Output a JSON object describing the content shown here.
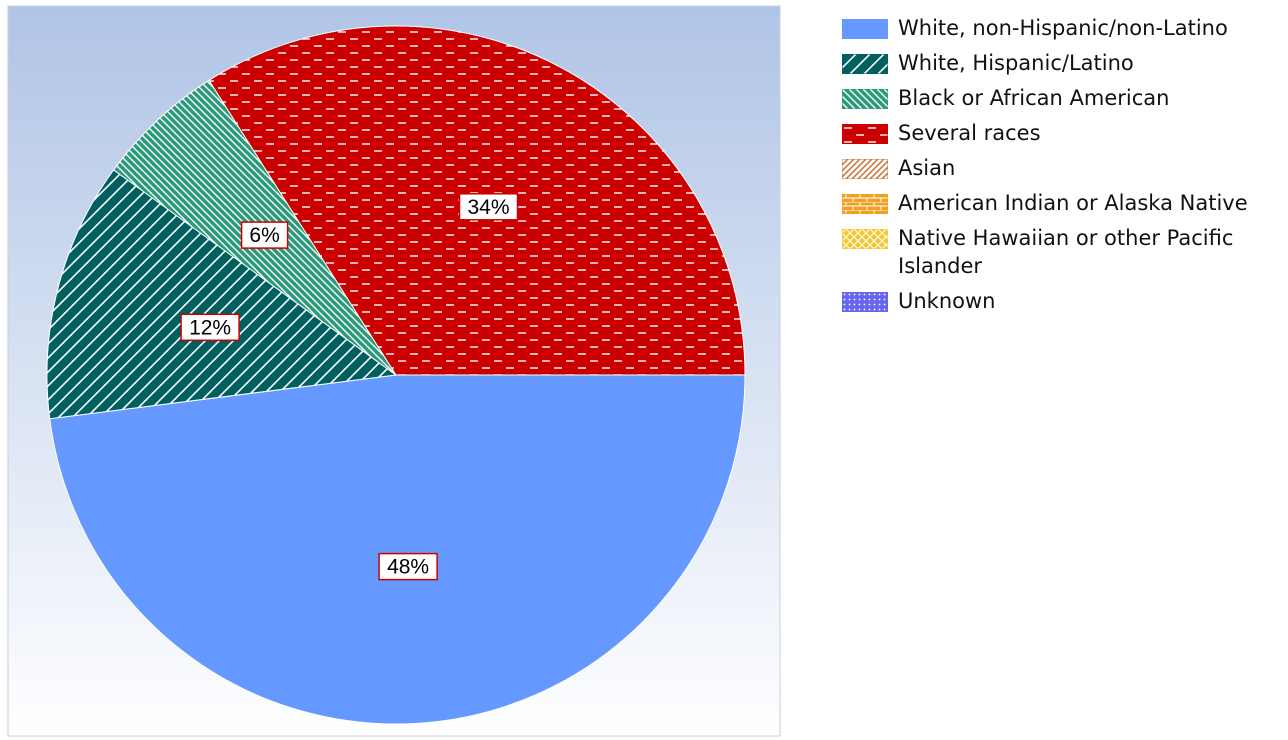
{
  "chart_data": {
    "type": "pie",
    "slices": [
      {
        "name": "White, non-Hispanic/non-Latino",
        "value": 48,
        "label": "48%",
        "color": "#6699ff",
        "pattern": "solid"
      },
      {
        "name": "White, Hispanic/Latino",
        "value": 12,
        "label": "12%",
        "color": "#006060",
        "pattern": "forward-diagonal"
      },
      {
        "name": "Black or African American",
        "value": 6,
        "label": "6%",
        "color": "#2a9a7a",
        "pattern": "backward-diagonal"
      },
      {
        "name": "Several races",
        "value": 34,
        "label": "34%",
        "color": "#cc0000",
        "pattern": "dashed-horizontal"
      },
      {
        "name": "Asian",
        "value": 0,
        "label": "",
        "color": "#cc7a3d",
        "pattern": "diagonal"
      },
      {
        "name": "American Indian or Alaska Native",
        "value": 0,
        "label": "",
        "color": "#f0a020",
        "pattern": "brick"
      },
      {
        "name": "Native Hawaiian or other Pacific Islander",
        "value": 0,
        "label": "",
        "color": "#f5c830",
        "pattern": "weave"
      },
      {
        "name": "Unknown",
        "value": 0,
        "label": "",
        "color": "#6666ee",
        "pattern": "dotted"
      }
    ],
    "legend_position": "right",
    "background": {
      "top": "#b0c4e6",
      "bottom": "#ffffff"
    }
  }
}
